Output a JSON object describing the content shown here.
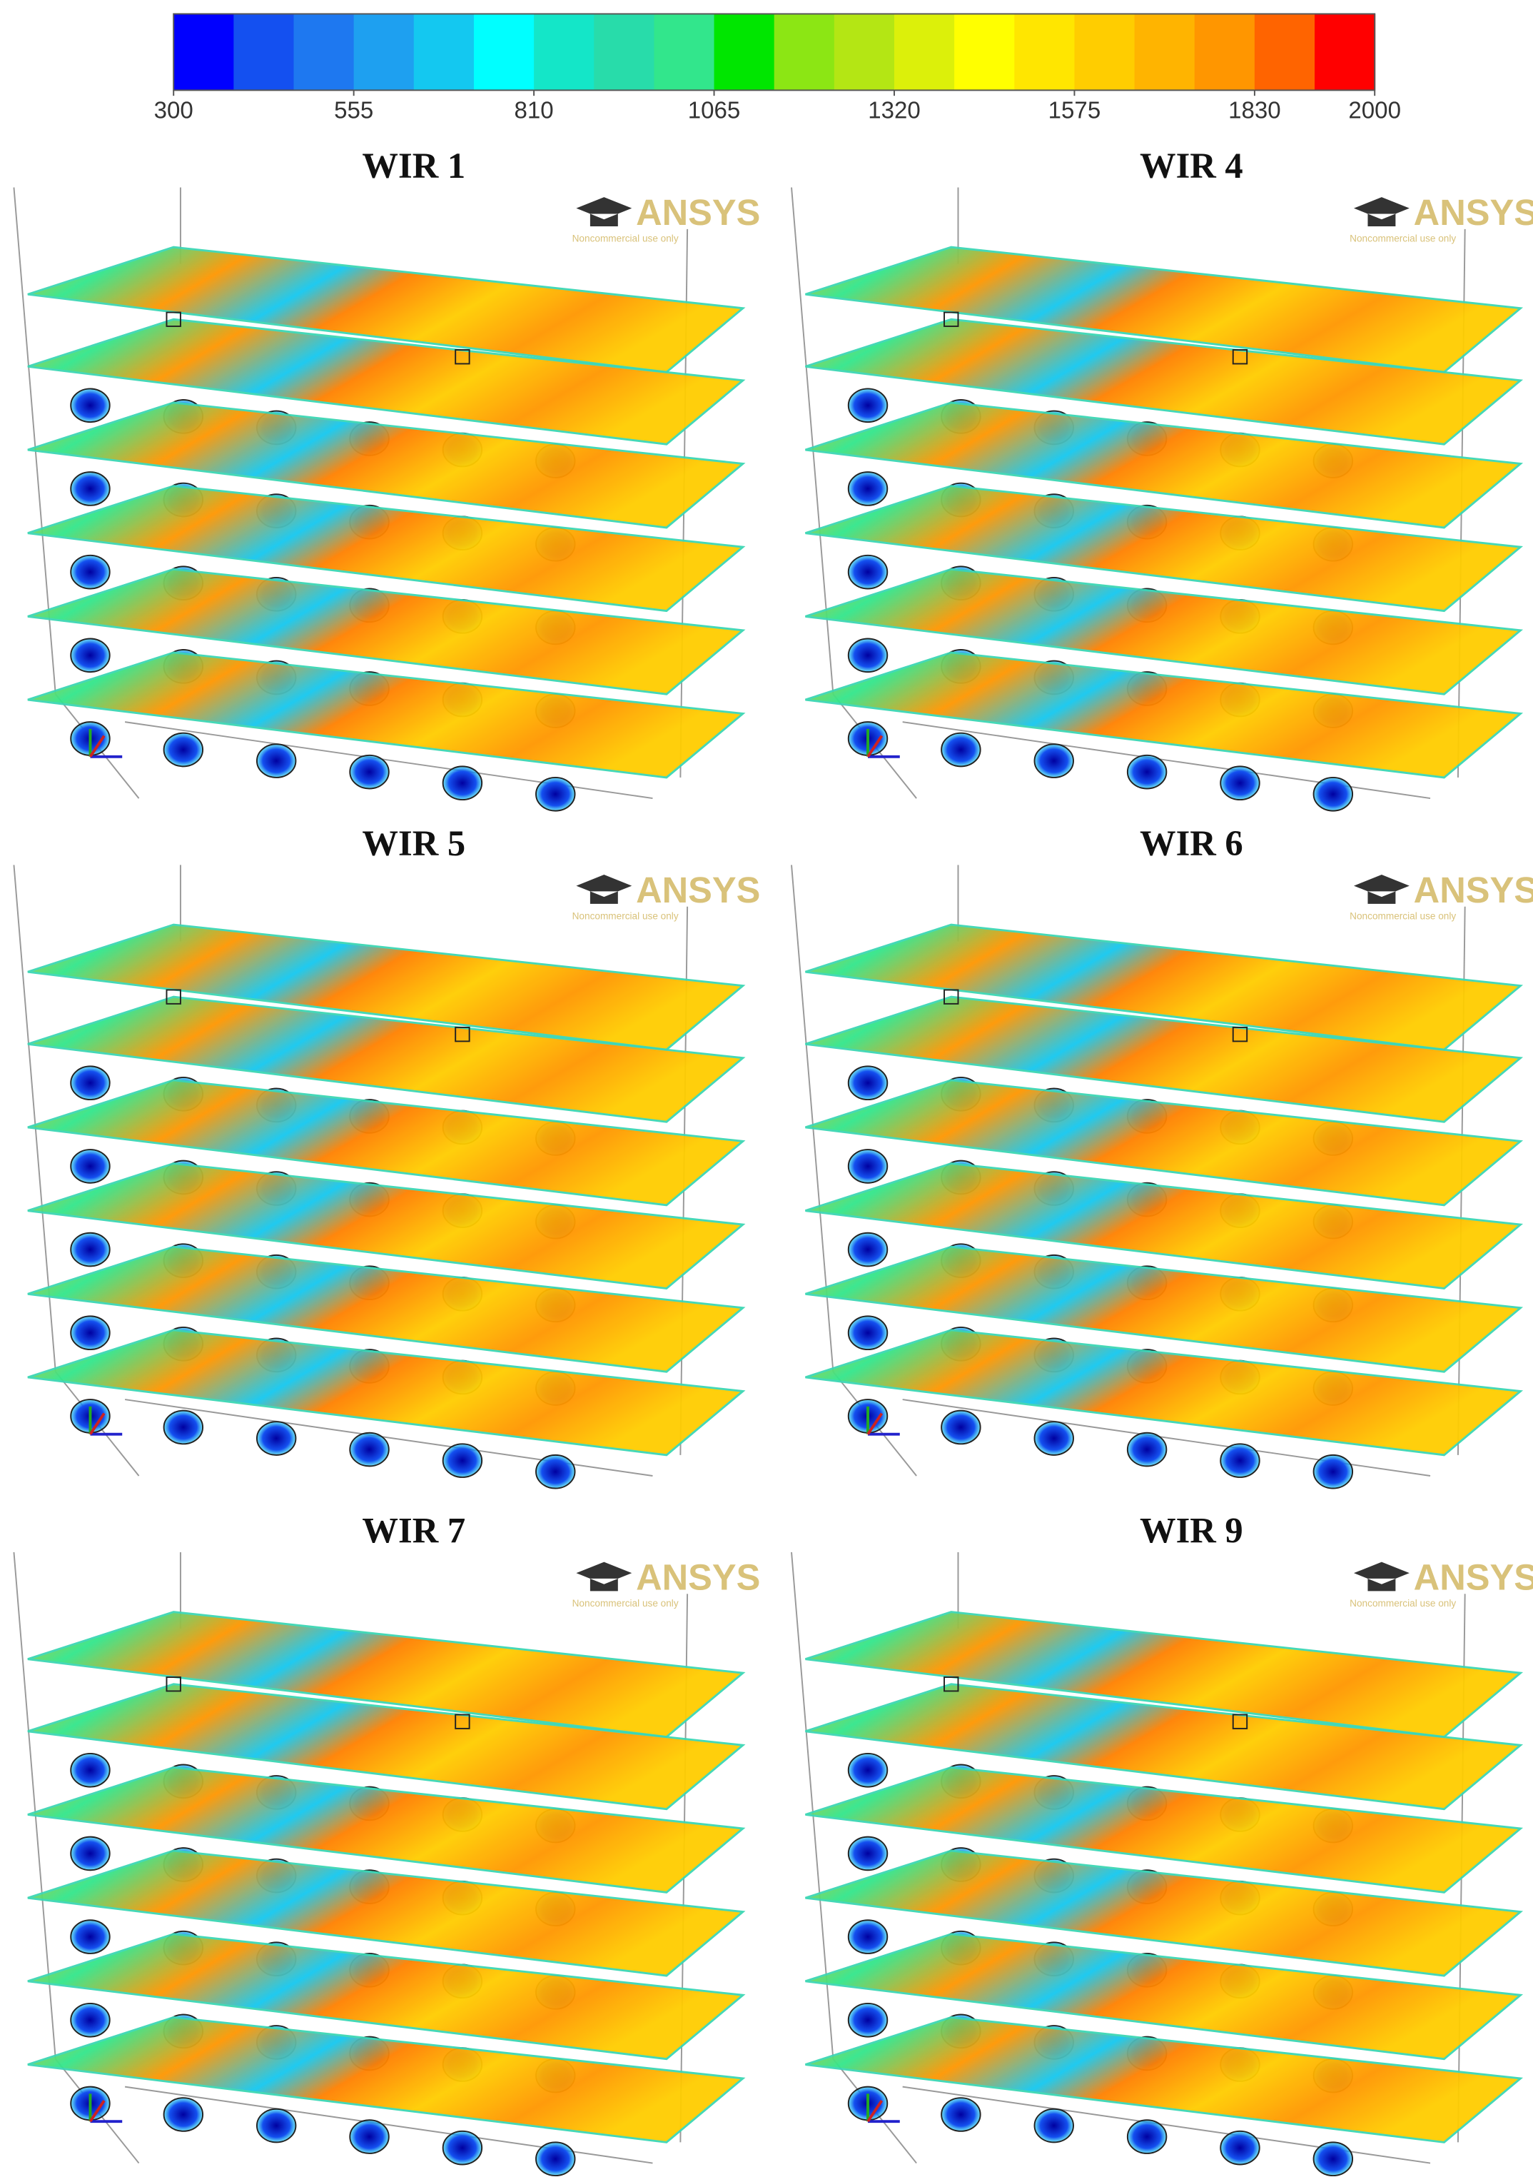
{
  "colorbar": {
    "colors": [
      "#0000ff",
      "#1450f0",
      "#1e78f0",
      "#1ea0f0",
      "#14c8f0",
      "#00ffff",
      "#14e6c8",
      "#28dcaa",
      "#32e68c",
      "#00e600",
      "#8ce614",
      "#b4e614",
      "#dcf00a",
      "#ffff00",
      "#ffe600",
      "#ffcd00",
      "#ffb400",
      "#ff9600",
      "#ff6400",
      "#ff0000"
    ],
    "lim": [
      300,
      2000
    ],
    "ticks": [
      300,
      555,
      810,
      1065,
      1320,
      1575,
      1830,
      2000
    ]
  },
  "panels": [
    {
      "title": "WIR 1",
      "logo": "ANSYS",
      "logo_note": "Noncommercial use only"
    },
    {
      "title": "WIR 4",
      "logo": "ANSYS",
      "logo_note": "Noncommercial use only"
    },
    {
      "title": "WIR 5",
      "logo": "ANSYS",
      "logo_note": "Noncommercial use only"
    },
    {
      "title": "WIR 6",
      "logo": "ANSYS",
      "logo_note": "Noncommercial use only"
    },
    {
      "title": "WIR 7",
      "logo": "ANSYS",
      "logo_note": "Noncommercial use only"
    },
    {
      "title": "WIR 9",
      "logo": "ANSYS",
      "logo_note": "Noncommercial use only"
    }
  ]
}
